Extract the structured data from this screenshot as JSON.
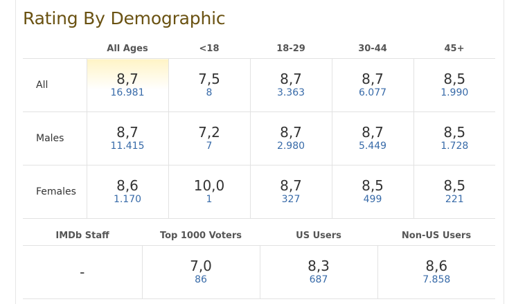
{
  "title": "Rating By Demographic",
  "demographics": {
    "columns": [
      "All Ages",
      "<18",
      "18-29",
      "30-44",
      "45+"
    ],
    "rows": [
      {
        "label": "All",
        "cells": [
          {
            "rating": "8,7",
            "votes": "16.981"
          },
          {
            "rating": "7,5",
            "votes": "8"
          },
          {
            "rating": "8,7",
            "votes": "3.363"
          },
          {
            "rating": "8,7",
            "votes": "6.077"
          },
          {
            "rating": "8,5",
            "votes": "1.990"
          }
        ]
      },
      {
        "label": "Males",
        "cells": [
          {
            "rating": "8,7",
            "votes": "11.415"
          },
          {
            "rating": "7,2",
            "votes": "7"
          },
          {
            "rating": "8,7",
            "votes": "2.980"
          },
          {
            "rating": "8,7",
            "votes": "5.449"
          },
          {
            "rating": "8,5",
            "votes": "1.728"
          }
        ]
      },
      {
        "label": "Females",
        "cells": [
          {
            "rating": "8,6",
            "votes": "1.170"
          },
          {
            "rating": "10,0",
            "votes": "1"
          },
          {
            "rating": "8,7",
            "votes": "327"
          },
          {
            "rating": "8,5",
            "votes": "499"
          },
          {
            "rating": "8,5",
            "votes": "221"
          }
        ]
      }
    ]
  },
  "groups": {
    "columns": [
      "IMDb Staff",
      "Top 1000 Voters",
      "US Users",
      "Non-US Users"
    ],
    "cells": [
      {
        "rating": "-",
        "votes": ""
      },
      {
        "rating": "7,0",
        "votes": "86"
      },
      {
        "rating": "8,3",
        "votes": "687"
      },
      {
        "rating": "8,6",
        "votes": "7.858"
      }
    ]
  },
  "colors": {
    "title": "#6a5212",
    "votes_link": "#376aa8",
    "highlight": "#fff4c6",
    "border": "#e2e2e2"
  }
}
